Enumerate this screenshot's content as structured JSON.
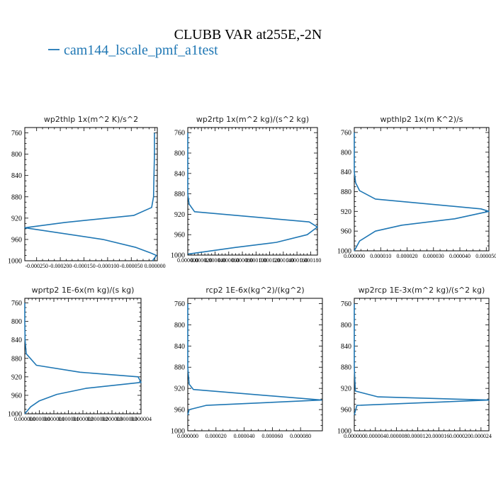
{
  "figure": {
    "title": "CLUBB VAR at255E,-2N",
    "legend": "cam144_lscale_pmf_a1test",
    "series_color": "#1f77b4"
  },
  "chart_data": [
    {
      "type": "line",
      "title": "wp2thlp   1x(m^2 K)/s^2",
      "ylim": [
        1000,
        750
      ],
      "yticks": [
        760,
        800,
        840,
        880,
        920,
        960,
        1000
      ],
      "xlim": [
        -0.000275,
        5e-06
      ],
      "xticks": [
        -0.00025,
        -0.0002,
        -0.00015,
        -0.0001,
        -5e-05,
        0.0
      ],
      "xticklabels": [
        "-0.000250",
        "-0.000200",
        "-0.000150",
        "-0.000100",
        "-0.000050",
        "0.000000"
      ],
      "series": [
        {
          "x": [
            -1e-06,
            -1e-06,
            -2e-06,
            -3e-06,
            -7e-06,
            -4.5e-05,
            -0.00019,
            -0.000275,
            -0.00011,
            -4e-05,
            -1e-05,
            3e-06,
            -5e-06
          ],
          "y": [
            760,
            800,
            840,
            880,
            900,
            915,
            928,
            938,
            960,
            975,
            985,
            990,
            1000
          ]
        }
      ]
    },
    {
      "type": "line",
      "title": "wp2rtp   1x(m^2 kg)/(s^2 kg)",
      "ylim": [
        1000,
        750
      ],
      "yticks": [
        760,
        800,
        840,
        880,
        920,
        960,
        1000
      ],
      "xlim": [
        0.0,
        0.00019
      ],
      "xticks": [
        0.0,
        2e-05,
        4e-05,
        6e-05,
        8e-05,
        0.0001,
        0.00012,
        0.00014,
        0.00016,
        0.00018
      ],
      "xticklabels": [
        "0.000000",
        "0.000020",
        "0.000040",
        "0.000060",
        "0.000080",
        "0.000100",
        "0.000120",
        "0.000140",
        "0.000160",
        "0.000180"
      ],
      "series": [
        {
          "x": [
            0.0,
            0.0,
            0.0,
            0.0,
            2e-06,
            1e-05,
            0.000178,
            0.00019,
            0.000175,
            0.00013,
            7e-05,
            5e-07
          ],
          "y": [
            760,
            800,
            840,
            880,
            900,
            915,
            935,
            945,
            960,
            975,
            985,
            998
          ]
        }
      ]
    },
    {
      "type": "line",
      "title": "wpthlp2   1x(m K^2)/s",
      "ylim": [
        1000,
        750
      ],
      "yticks": [
        760,
        800,
        840,
        880,
        920,
        960,
        1000
      ],
      "xlim": [
        0.0,
        5.1e-05
      ],
      "xticks": [
        0.0,
        1e-05,
        2e-05,
        3e-05,
        4e-05,
        5e-05
      ],
      "xticklabels": [
        "0.000000",
        "0.000010",
        "0.000020",
        "0.000030",
        "0.000040",
        "0.000050"
      ],
      "series": [
        {
          "x": [
            0.0,
            0.0,
            0.0,
            5e-07,
            2e-06,
            8e-06,
            4.8e-05,
            5.1e-05,
            3.8e-05,
            1.8e-05,
            8e-06,
            2e-06,
            0.0
          ],
          "y": [
            760,
            800,
            840,
            862,
            878,
            895,
            915,
            920,
            935,
            948,
            960,
            980,
            1000
          ]
        }
      ]
    },
    {
      "type": "line",
      "title": "wprtp2   1E-6x(m kg)/(s kg)",
      "ylim": [
        1000,
        750
      ],
      "yticks": [
        760,
        800,
        840,
        880,
        920,
        960,
        1000
      ],
      "xlim": [
        0.0,
        4e-06
      ],
      "xticks": [
        0.0,
        5e-07,
        1e-06,
        1.5e-06,
        2e-06,
        2.5e-06,
        3e-06,
        3.5e-06,
        4e-06
      ],
      "xticklabels": [
        "0.000000",
        "0.000000",
        "0.000001",
        "0.000001",
        "0.000002",
        "0.000002",
        "0.000003",
        "0.000003",
        "0.000004"
      ],
      "series": [
        {
          "x": [
            0.0,
            0.0,
            1e-08,
            5e-08,
            4e-07,
            1.9e-06,
            3.9e-06,
            4e-06,
            2.1e-06,
            1.1e-06,
            5e-07,
            2e-07,
            0.0
          ],
          "y": [
            760,
            800,
            840,
            870,
            895,
            910,
            920,
            932,
            945,
            958,
            972,
            985,
            1000
          ]
        }
      ]
    },
    {
      "type": "line",
      "title": "rcp2   1E-6x(kg^2)/(kg^2)",
      "ylim": [
        1000,
        750
      ],
      "yticks": [
        760,
        800,
        840,
        880,
        920,
        960,
        1000
      ],
      "xlim": [
        0.0,
        9.55e-05
      ],
      "xticks": [
        0.0,
        2e-05,
        4e-05,
        6e-05,
        8e-05
      ],
      "xticklabels": [
        "0.000000",
        "0.000020",
        "0.000040",
        "0.000060",
        "0.000080"
      ],
      "series": [
        {
          "x": [
            0.0,
            0.0,
            0.0,
            0.0,
            1e-06,
            4e-06,
            9.5e-05,
            1.3e-05,
            1e-06,
            0.0
          ],
          "y": [
            760,
            800,
            840,
            880,
            912,
            922,
            942,
            952,
            960,
            970
          ]
        }
      ]
    },
    {
      "type": "line",
      "title": "wp2rcp   1E-3x(m^2 kg)/(s^2 kg)",
      "ylim": [
        1000,
        750
      ],
      "yticks": [
        760,
        800,
        840,
        880,
        920,
        960,
        1000
      ],
      "xlim": [
        0.0,
        2.55e-05
      ],
      "xticks": [
        0.0,
        4e-06,
        8e-06,
        1.2e-05,
        1.6e-05,
        2e-05,
        2.4e-05
      ],
      "xticklabels": [
        "0.000000",
        "0.000004",
        "0.000008",
        "0.000012",
        "0.000016",
        "0.000020",
        "0.000024"
      ],
      "series": [
        {
          "x": [
            0.0,
            0.0,
            0.0,
            0.0,
            2e-07,
            4.5e-06,
            2.55e-05,
            5e-07,
            0.0
          ],
          "y": [
            760,
            800,
            840,
            880,
            925,
            936,
            942,
            952,
            970
          ]
        }
      ]
    }
  ]
}
